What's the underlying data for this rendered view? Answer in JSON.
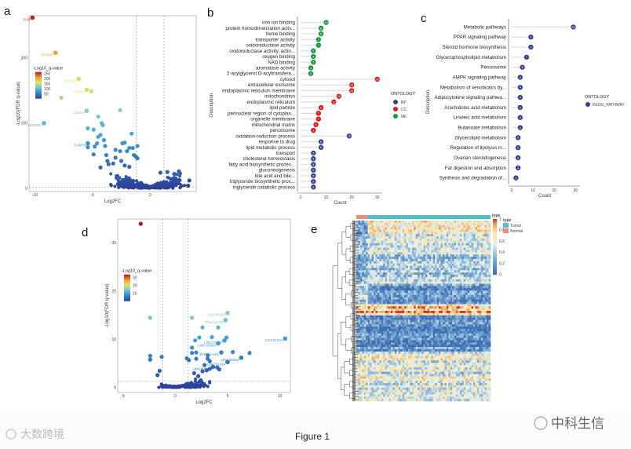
{
  "figure": {
    "caption": "Figure 1",
    "watermark_left": "大数跨境",
    "watermark_right": "中科生信",
    "panel_letters": [
      "a",
      "b",
      "c",
      "d",
      "e"
    ]
  },
  "colors": {
    "bp": "#35418f",
    "cc": "#d7191c",
    "mf": "#1a9641",
    "kegg": "#35418f",
    "tumor": "#4fc0c6",
    "normal": "#f08a80"
  },
  "chart_data": [
    {
      "id": "a",
      "type": "scatter",
      "title": "",
      "xlabel": "Log2FC",
      "ylabel": "-Log10(FDR q-value)",
      "xlim": [
        -10.5,
        4
      ],
      "ylim": [
        -5,
        265
      ],
      "xticks": [
        -10,
        -5,
        0
      ],
      "yticks": [
        0,
        100,
        200
      ],
      "vlines": [
        -1.2,
        1.2
      ],
      "hline": 1.3,
      "legend": {
        "title": "-Log10_q-value",
        "ticks": [
          250,
          200,
          150,
          100,
          50
        ],
        "max": 265,
        "placement": "left"
      },
      "labeled_points": [
        {
          "label": "CA3",
          "x": -10.2,
          "y": 262
        },
        {
          "label": "THRSP",
          "x": -8.2,
          "y": 208
        },
        {
          "label": "ACACB",
          "x": -6.2,
          "y": 168
        },
        {
          "label": "PLIN1",
          "x": -5.5,
          "y": 151
        },
        {
          "label": "CIDEA",
          "x": -5.5,
          "y": 119
        },
        {
          "label": "HSD3B1",
          "x": -9.2,
          "y": 100
        },
        {
          "label": "FABP4",
          "x": -5.4,
          "y": 69
        }
      ],
      "points": [
        [
          -5.1,
          149
        ],
        [
          -7.7,
          139
        ],
        [
          -2.6,
          120
        ],
        [
          -4.5,
          110
        ],
        [
          -4.2,
          100
        ],
        [
          -4.1,
          97
        ],
        [
          -5.4,
          92
        ],
        [
          -4.9,
          90
        ],
        [
          -4.3,
          82
        ],
        [
          -4.5,
          79
        ],
        [
          -4.0,
          74
        ],
        [
          -5.4,
          63
        ],
        [
          -4.6,
          69
        ],
        [
          -4.8,
          64
        ],
        [
          -3.9,
          65
        ],
        [
          -1.6,
          84
        ],
        [
          -2.2,
          70
        ],
        [
          -2.4,
          69
        ],
        [
          -1.8,
          62
        ],
        [
          -1.1,
          65
        ],
        [
          -1.5,
          62
        ],
        [
          -3.0,
          59
        ],
        [
          -2.6,
          57
        ],
        [
          -2.0,
          57
        ],
        [
          -4.9,
          52
        ],
        [
          -3.8,
          51
        ],
        [
          -3.0,
          47
        ],
        [
          -1.4,
          51
        ],
        [
          -1.2,
          48
        ],
        [
          -1.1,
          46
        ],
        [
          -3.7,
          42
        ],
        [
          -3.2,
          38
        ],
        [
          -2.5,
          42
        ],
        [
          -3.6,
          37
        ],
        [
          -4.3,
          32
        ],
        [
          -2.2,
          35
        ],
        [
          -1.8,
          33
        ],
        [
          2.5,
          26
        ],
        [
          3.4,
          12
        ],
        [
          3.3,
          4
        ],
        [
          1.5,
          25
        ],
        [
          2.1,
          22
        ],
        [
          0.9,
          24
        ]
      ],
      "background_cloud": {
        "count": 420,
        "xrange": [
          -3.5,
          3
        ],
        "ymax": 40
      }
    },
    {
      "id": "b",
      "type": "lollipop",
      "xlabel": "Count",
      "ylabel": "Description",
      "xlim": [
        0,
        31
      ],
      "xticks": [
        0,
        10,
        20,
        30
      ],
      "legend": {
        "title": "ONTOLOGY",
        "entries": [
          "BP",
          "CC",
          "MF"
        ],
        "placement": "right"
      },
      "rows": [
        {
          "label": "iron ion binding",
          "value": 10,
          "group": "MF"
        },
        {
          "label": "protein homodimerization activ...",
          "value": 8,
          "group": "MF"
        },
        {
          "label": "heme binding",
          "value": 8,
          "group": "MF"
        },
        {
          "label": "transporter activity",
          "value": 7,
          "group": "MF"
        },
        {
          "label": "oxidoreductase activity",
          "value": 7,
          "group": "MF"
        },
        {
          "label": "oxidoreductase activity, actin...",
          "value": 5,
          "group": "MF"
        },
        {
          "label": "oxygen binding",
          "value": 5,
          "group": "MF"
        },
        {
          "label": "NAD binding",
          "value": 5,
          "group": "MF"
        },
        {
          "label": "aromatase activity",
          "value": 4,
          "group": "MF"
        },
        {
          "label": "2-acylglycerol O-acyltransfera...",
          "value": 4,
          "group": "MF"
        },
        {
          "label": "cytosol",
          "value": 30,
          "group": "CC"
        },
        {
          "label": "extracellular exosome",
          "value": 20,
          "group": "CC"
        },
        {
          "label": "endoplasmic reticulum membrane",
          "value": 20,
          "group": "CC"
        },
        {
          "label": "mitochondrion",
          "value": 15,
          "group": "CC"
        },
        {
          "label": "endoplasmic reticulum",
          "value": 13,
          "group": "CC"
        },
        {
          "label": "lipid particle",
          "value": 8,
          "group": "CC"
        },
        {
          "label": "perinuclear region of cytoplas...",
          "value": 7,
          "group": "CC"
        },
        {
          "label": "organelle membrane",
          "value": 7,
          "group": "CC"
        },
        {
          "label": "mitochondrial matrix",
          "value": 6,
          "group": "CC"
        },
        {
          "label": "peroxisome",
          "value": 5,
          "group": "CC"
        },
        {
          "label": "oxidation-reduction process",
          "value": 19,
          "group": "BP"
        },
        {
          "label": "response to drug",
          "value": 8,
          "group": "BP"
        },
        {
          "label": "lipid metabolic process",
          "value": 8,
          "group": "BP"
        },
        {
          "label": "transport",
          "value": 5,
          "group": "BP"
        },
        {
          "label": "cholesterol homeostasis",
          "value": 5,
          "group": "BP"
        },
        {
          "label": "fatty acid biosynthetic proces...",
          "value": 5,
          "group": "BP"
        },
        {
          "label": "gluconeogenesis",
          "value": 5,
          "group": "BP"
        },
        {
          "label": "bile acid and bile...",
          "value": 5,
          "group": "BP"
        },
        {
          "label": "triglyceride biosynthetic proc...",
          "value": 5,
          "group": "BP"
        },
        {
          "label": "triglyceride catabolic process",
          "value": 5,
          "group": "BP"
        }
      ]
    },
    {
      "id": "c",
      "type": "lollipop",
      "xlabel": "Count",
      "ylabel": "Description",
      "xlim": [
        0,
        31
      ],
      "xticks": [
        0,
        10,
        20,
        30
      ],
      "legend": {
        "title": "ONTOLOGY",
        "entries": [
          "KEGG_PATHWAY"
        ],
        "placement": "right"
      },
      "rows": [
        {
          "label": "Metabolic pathways",
          "value": 29
        },
        {
          "label": "PPAR signaling pathway",
          "value": 9
        },
        {
          "label": "Steroid hormone biosynthesis",
          "value": 9
        },
        {
          "label": "Glycerophospholipid metabolism",
          "value": 7
        },
        {
          "label": "Peroxisome",
          "value": 5
        },
        {
          "label": "AMPK signaling pathway",
          "value": 4
        },
        {
          "label": "Metabolism of xenobiotics by...",
          "value": 4
        },
        {
          "label": "Adipocytokine signaling pathwa...",
          "value": 4
        },
        {
          "label": "Arachidonic acid metabolism",
          "value": 4
        },
        {
          "label": "Linoleic acid metabolism",
          "value": 4
        },
        {
          "label": "Butanoate metabolism",
          "value": 4
        },
        {
          "label": "Glycerolipid metabolism",
          "value": 3
        },
        {
          "label": "Regulation of lipolysis in...",
          "value": 3
        },
        {
          "label": "Ovarian steroidogenesis",
          "value": 3
        },
        {
          "label": "Fat digestion and absorption",
          "value": 3
        },
        {
          "label": "Synthesis and degradation of...",
          "value": 2
        }
      ]
    },
    {
      "id": "d",
      "type": "scatter",
      "xlabel": "Log2FC",
      "ylabel": "-Log10(FDR q-value)",
      "xlim": [
        -5.5,
        11
      ],
      "ylim": [
        -1,
        35
      ],
      "xticks": [
        -5,
        0,
        5,
        10
      ],
      "yticks": [
        0,
        10,
        20,
        30
      ],
      "vlines": [
        -1.2,
        1.2
      ],
      "hline": 1.3,
      "legend": {
        "title": "-Log10_q-value",
        "ticks": [
          30,
          20,
          10
        ],
        "max": 34,
        "placement": "left"
      },
      "labeled_points": [
        {
          "label": "LINC00460",
          "x": 5.0,
          "y": 15.5
        },
        {
          "label": "TTLL11-IT1",
          "x": 4.8,
          "y": 14.0
        },
        {
          "label": "LINC02418",
          "x": 4.7,
          "y": 9.8
        },
        {
          "label": "LINC00982",
          "x": 4.1,
          "y": 9.2
        },
        {
          "label": "LINC01322",
          "x": 10.5,
          "y": 10.2
        },
        {
          "label": "ZFPM2-AS1",
          "x": 4.4,
          "y": 7.3
        },
        {
          "label": "LINC02434",
          "x": 6.3,
          "y": 6.2
        },
        {
          "label": "LINC01234",
          "x": 5.0,
          "y": 5.3
        },
        {
          "label": "LINC00941",
          "x": 3.6,
          "y": 4.3
        }
      ],
      "points": [
        [
          -3.3,
          34
        ],
        [
          -2.4,
          14.5
        ],
        [
          1.6,
          14.5
        ],
        [
          2.6,
          12.5
        ],
        [
          4.1,
          12.5
        ],
        [
          3.5,
          10.5
        ],
        [
          4.9,
          10.4
        ],
        [
          2.3,
          10.4
        ],
        [
          1.9,
          9.8
        ],
        [
          1.6,
          8.3
        ],
        [
          1.6,
          7.2
        ],
        [
          2.0,
          7.3
        ],
        [
          5.5,
          7.4
        ],
        [
          7.1,
          7.2
        ],
        [
          -2.4,
          6.6
        ],
        [
          -2.4,
          5.8
        ],
        [
          -1.3,
          6.4
        ],
        [
          1.1,
          6.1
        ],
        [
          3.1,
          6.7
        ],
        [
          3.1,
          6.0
        ],
        [
          2.0,
          6.0
        ],
        [
          1.3,
          5.7
        ],
        [
          3.3,
          5.5
        ],
        [
          2.8,
          4.7
        ],
        [
          4.0,
          4.2
        ],
        [
          -1.5,
          3.5
        ],
        [
          -1.7,
          2.6
        ],
        [
          1.8,
          3.0
        ],
        [
          2.2,
          2.4
        ],
        [
          2.6,
          3.4
        ],
        [
          3.0,
          3.6
        ],
        [
          4.2,
          3.8
        ],
        [
          3.3,
          3.9
        ]
      ],
      "background_cloud": {
        "count": 160,
        "xrange": [
          -1.8,
          3.5
        ],
        "ymax": 3.5
      }
    },
    {
      "id": "e",
      "type": "heatmap",
      "annotation": {
        "title": "type",
        "entries": [
          "Tumor",
          "Normal"
        ],
        "normal_fraction": 0.08
      },
      "colorbar": {
        "title": "type",
        "ticks": [
          1,
          0.8,
          0.6,
          0.4,
          0.2,
          0
        ],
        "range": [
          0,
          1
        ]
      },
      "row_blocks": [
        {
          "rows": 6,
          "tumor": 0.72,
          "normal": 0.25
        },
        {
          "rows": 22,
          "tumor": 0.45,
          "normal": 0.3
        },
        {
          "rows": 9,
          "tumor": 0.18,
          "normal": 0.45
        },
        {
          "rows": 5,
          "tumor": 0.82,
          "normal": 0.8
        },
        {
          "rows": 16,
          "tumor": 0.15,
          "normal": 0.2
        },
        {
          "rows": 22,
          "tumor": 0.55,
          "normal": 0.6
        }
      ],
      "columns": 70
    }
  ]
}
